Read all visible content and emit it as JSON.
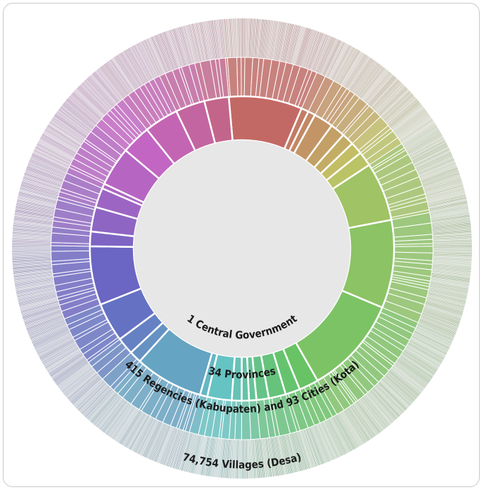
{
  "chart_data": {
    "type": "sunburst",
    "levels": [
      {
        "label": "1 Central Government"
      },
      {
        "label": "34 Provinces"
      },
      {
        "label": "415 Regencies (Kabupaten) and 93 Cities (Kota)"
      },
      {
        "label": "74,754 Villages (Desa)"
      }
    ],
    "provinces": [
      {
        "hue": 3,
        "weight": 15
      },
      {
        "hue": 14,
        "weight": 1.5
      },
      {
        "hue": 22,
        "weight": 1.5
      },
      {
        "hue": 30,
        "weight": 4
      },
      {
        "hue": 38,
        "weight": 3
      },
      {
        "hue": 46,
        "weight": 2.5
      },
      {
        "hue": 56,
        "weight": 2.5
      },
      {
        "hue": 66,
        "weight": 3
      },
      {
        "hue": 82,
        "weight": 12
      },
      {
        "hue": 95,
        "weight": 18
      },
      {
        "hue": 105,
        "weight": 20
      },
      {
        "hue": 118,
        "weight": 4
      },
      {
        "hue": 126,
        "weight": 3
      },
      {
        "hue": 134,
        "weight": 3.5
      },
      {
        "hue": 142,
        "weight": 2.5
      },
      {
        "hue": 152,
        "weight": 1.5
      },
      {
        "hue": 160,
        "weight": 1.5
      },
      {
        "hue": 172,
        "weight": 2
      },
      {
        "hue": 180,
        "weight": 5
      },
      {
        "hue": 188,
        "weight": 1.5
      },
      {
        "hue": 200,
        "weight": 14
      },
      {
        "hue": 212,
        "weight": 2.5
      },
      {
        "hue": 222,
        "weight": 3.5
      },
      {
        "hue": 232,
        "weight": 8
      },
      {
        "hue": 244,
        "weight": 12
      },
      {
        "hue": 256,
        "weight": 3
      },
      {
        "hue": 266,
        "weight": 5
      },
      {
        "hue": 276,
        "weight": 4
      },
      {
        "hue": 286,
        "weight": 1
      },
      {
        "hue": 292,
        "weight": 8
      },
      {
        "hue": 300,
        "weight": 6
      },
      {
        "hue": 310,
        "weight": 7
      },
      {
        "hue": 322,
        "weight": 6
      },
      {
        "hue": 336,
        "weight": 5
      }
    ]
  }
}
